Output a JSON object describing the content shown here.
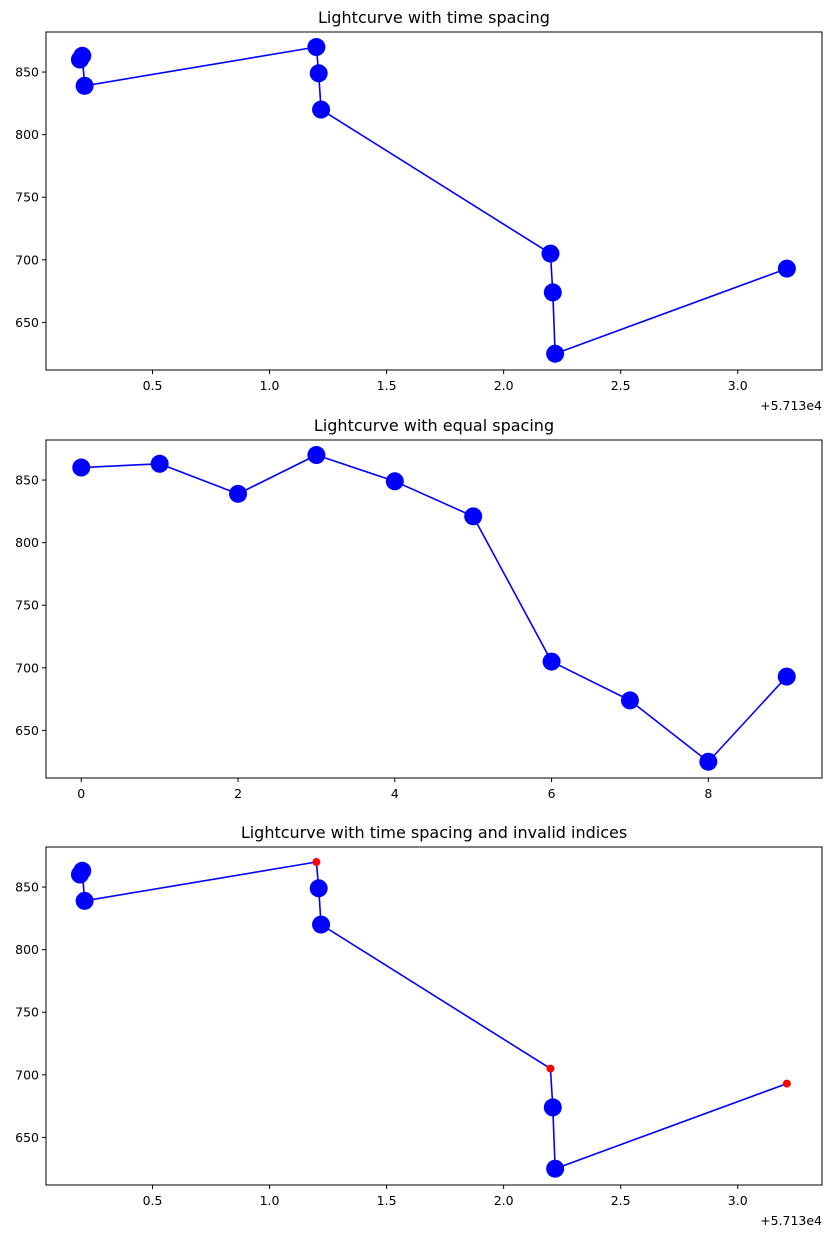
{
  "chart_data": [
    {
      "type": "line",
      "title": "Lightcurve with time spacing",
      "xlabel": "",
      "ylabel": "",
      "x_offset_label": "+5.713e4",
      "xlim": [
        0.045,
        3.36
      ],
      "ylim": [
        612,
        882
      ],
      "x_ticks": [
        0.5,
        1.0,
        1.5,
        2.0,
        2.5,
        3.0
      ],
      "x_tick_labels": [
        "0.5",
        "1.0",
        "1.5",
        "2.0",
        "2.5",
        "3.0"
      ],
      "y_ticks": [
        650,
        700,
        750,
        800,
        850
      ],
      "y_tick_labels": [
        "650",
        "700",
        "750",
        "800",
        "850"
      ],
      "grid": false,
      "line_color": "#0000ff",
      "marker_color": "#0000ff",
      "series": [
        {
          "x": [
            0.19,
            0.2,
            0.21,
            1.2,
            1.21,
            1.22,
            2.2,
            2.21,
            2.22,
            3.21
          ],
          "y": [
            860,
            863,
            839,
            870,
            849,
            820,
            705,
            674,
            625,
            693
          ],
          "marker_size": [
            9,
            9,
            9,
            9,
            9,
            9,
            9,
            9,
            9,
            9
          ],
          "marker_color": [
            "#0000ff",
            "#0000ff",
            "#0000ff",
            "#0000ff",
            "#0000ff",
            "#0000ff",
            "#0000ff",
            "#0000ff",
            "#0000ff",
            "#0000ff"
          ]
        }
      ]
    },
    {
      "type": "line",
      "title": "Lightcurve with equal spacing",
      "xlabel": "",
      "ylabel": "",
      "x_offset_label": "",
      "xlim": [
        -0.45,
        9.45
      ],
      "ylim": [
        612,
        882
      ],
      "x_ticks": [
        0,
        2,
        4,
        6,
        8
      ],
      "x_tick_labels": [
        "0",
        "2",
        "4",
        "6",
        "8"
      ],
      "y_ticks": [
        650,
        700,
        750,
        800,
        850
      ],
      "y_tick_labels": [
        "650",
        "700",
        "750",
        "800",
        "850"
      ],
      "grid": false,
      "line_color": "#0000ff",
      "marker_color": "#0000ff",
      "series": [
        {
          "x": [
            0,
            1,
            2,
            3,
            4,
            5,
            6,
            7,
            8,
            9
          ],
          "y": [
            860,
            863,
            839,
            870,
            849,
            821,
            705,
            674,
            625,
            693
          ],
          "marker_size": [
            9,
            9,
            9,
            9,
            9,
            9,
            9,
            9,
            9,
            9
          ],
          "marker_color": [
            "#0000ff",
            "#0000ff",
            "#0000ff",
            "#0000ff",
            "#0000ff",
            "#0000ff",
            "#0000ff",
            "#0000ff",
            "#0000ff",
            "#0000ff"
          ]
        }
      ]
    },
    {
      "type": "line",
      "title": "Lightcurve with time spacing and invalid indices",
      "xlabel": "",
      "ylabel": "",
      "x_offset_label": "+5.713e4",
      "xlim": [
        0.045,
        3.36
      ],
      "ylim": [
        612,
        882
      ],
      "x_ticks": [
        0.5,
        1.0,
        1.5,
        2.0,
        2.5,
        3.0
      ],
      "x_tick_labels": [
        "0.5",
        "1.0",
        "1.5",
        "2.0",
        "2.5",
        "3.0"
      ],
      "y_ticks": [
        650,
        700,
        750,
        800,
        850
      ],
      "y_tick_labels": [
        "650",
        "700",
        "750",
        "800",
        "850"
      ],
      "grid": false,
      "line_color": "#0000ff",
      "marker_color": "#0000ff",
      "invalid_marker_color": "#ff0000",
      "series": [
        {
          "x": [
            0.19,
            0.2,
            0.21,
            1.2,
            1.21,
            1.22,
            2.2,
            2.21,
            2.22,
            3.21
          ],
          "y": [
            860,
            863,
            839,
            870,
            849,
            820,
            705,
            674,
            625,
            693
          ],
          "marker_size": [
            9,
            9,
            9,
            4,
            9,
            9,
            4,
            9,
            9,
            4
          ],
          "marker_color": [
            "#0000ff",
            "#0000ff",
            "#0000ff",
            "#ff0000",
            "#0000ff",
            "#0000ff",
            "#ff0000",
            "#0000ff",
            "#0000ff",
            "#ff0000"
          ]
        }
      ]
    }
  ]
}
